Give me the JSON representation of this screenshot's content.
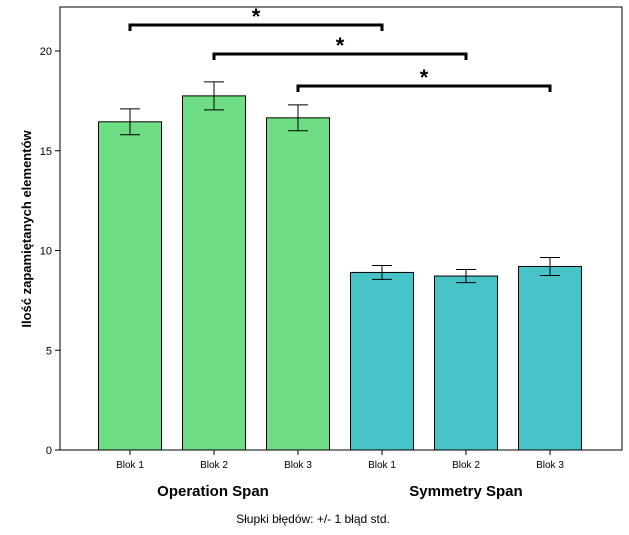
{
  "chart_data": {
    "type": "bar",
    "ylabel": "Ilość zapamiętanych elementów",
    "ylim": [
      0,
      22
    ],
    "yticks": [
      0,
      5,
      10,
      15,
      20
    ],
    "grid": false,
    "groups": [
      {
        "name": "Operation Span",
        "color": "#6fdd84",
        "bars": [
          {
            "label": "Blok 1",
            "value": 16.45,
            "err": 0.65
          },
          {
            "label": "Blok 2",
            "value": 17.75,
            "err": 0.7
          },
          {
            "label": "Blok 3",
            "value": 16.65,
            "err": 0.65
          }
        ]
      },
      {
        "name": "Symmetry Span",
        "color": "#48c3c8",
        "bars": [
          {
            "label": "Blok 1",
            "value": 8.9,
            "err": 0.35
          },
          {
            "label": "Blok 2",
            "value": 8.72,
            "err": 0.33
          },
          {
            "label": "Blok 3",
            "value": 9.2,
            "err": 0.45
          }
        ]
      }
    ],
    "significance": [
      {
        "from": 0,
        "to": 3,
        "label": "*"
      },
      {
        "from": 1,
        "to": 4,
        "label": "*"
      },
      {
        "from": 2,
        "to": 5,
        "label": "*"
      }
    ],
    "note": "Słupki błędów: +/- 1 błąd std."
  }
}
